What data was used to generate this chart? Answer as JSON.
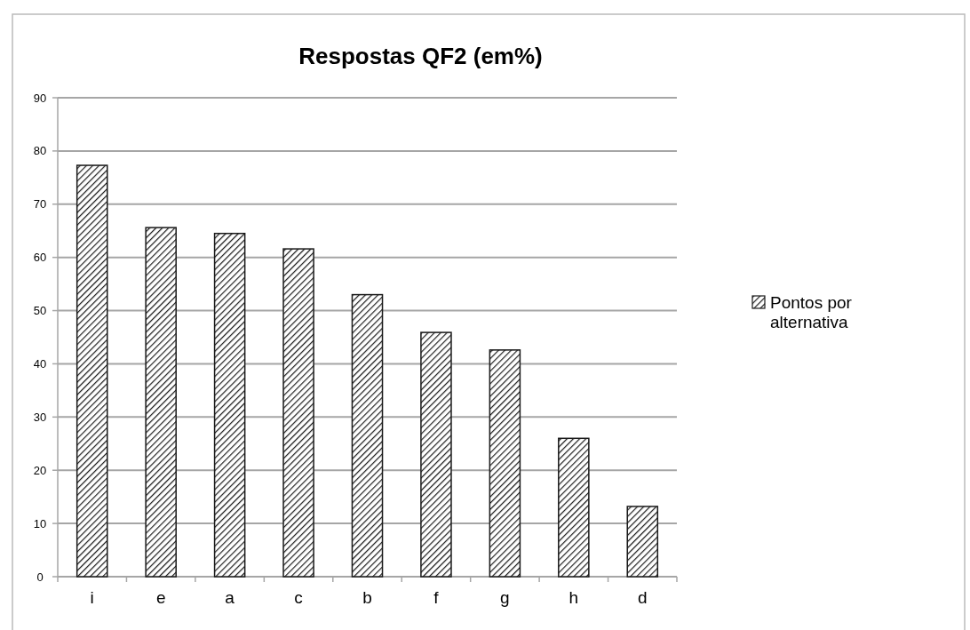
{
  "chart_data": {
    "type": "bar",
    "title": "Respostas QF2 (em%)",
    "categories": [
      "i",
      "e",
      "a",
      "c",
      "b",
      "f",
      "g",
      "h",
      "d"
    ],
    "series": [
      {
        "name": "Pontos por alternativa",
        "color": "#1a1a1a",
        "values": [
          77.3,
          65.6,
          64.5,
          61.6,
          53.0,
          45.9,
          42.6,
          26.0,
          13.2
        ]
      }
    ],
    "ylim": [
      0,
      90
    ],
    "yticks": [
      0,
      10,
      20,
      30,
      40,
      50,
      60,
      70,
      80,
      90
    ],
    "grid": "y",
    "legend": "right"
  }
}
